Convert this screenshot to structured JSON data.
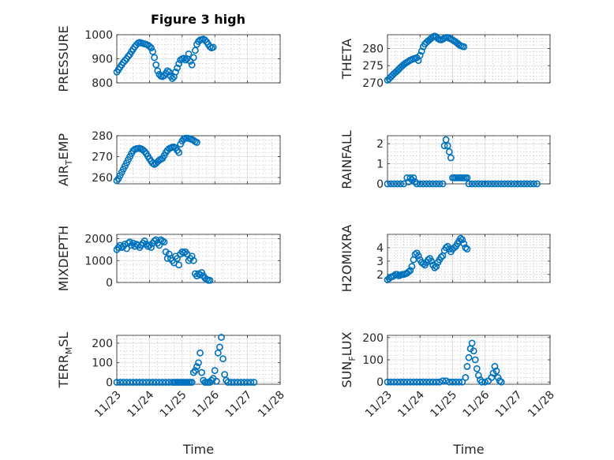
{
  "figure": {
    "title": "Figure 3 high",
    "marker_color": "#0072BD",
    "grid": "major+minor"
  },
  "chart_data": [
    {
      "type": "scatter",
      "title": "Figure 3 high",
      "ylabel": "PRESSURE",
      "ylim": [
        800,
        1000
      ],
      "yticks": [
        800,
        900,
        1000
      ],
      "xlim": [
        0,
        5
      ],
      "xticks": [
        0,
        1,
        2,
        3,
        4,
        5
      ],
      "x": [
        0.0,
        0.05,
        0.1,
        0.15,
        0.2,
        0.25,
        0.3,
        0.35,
        0.4,
        0.45,
        0.5,
        0.55,
        0.6,
        0.65,
        0.7,
        0.75,
        0.8,
        0.85,
        0.9,
        0.95,
        1.0,
        1.05,
        1.1,
        1.15,
        1.2,
        1.25,
        1.3,
        1.35,
        1.4,
        1.45,
        1.5,
        1.55,
        1.6,
        1.65,
        1.7,
        1.75,
        1.8,
        1.85,
        1.9,
        1.95,
        2.0,
        2.05,
        2.1,
        2.15,
        2.2,
        2.25,
        2.3,
        2.35,
        2.4,
        2.45,
        2.5,
        2.55,
        2.6,
        2.65,
        2.7,
        2.75,
        2.8,
        2.85,
        2.9,
        2.95,
        3.0,
        3.05,
        3.1,
        3.15,
        3.2,
        3.25,
        3.3,
        3.35,
        3.4,
        3.45,
        3.5,
        3.55,
        3.6,
        3.65,
        3.7,
        3.75,
        3.8,
        3.85,
        3.9,
        3.95
      ],
      "values": [
        845,
        855,
        865,
        875,
        885,
        893,
        900,
        910,
        918,
        930,
        940,
        950,
        958,
        965,
        968,
        966,
        964,
        962,
        960,
        957,
        952,
        945,
        930,
        905,
        875,
        850,
        835,
        828,
        826,
        830,
        840,
        850,
        845,
        828,
        818,
        825,
        845,
        862,
        880,
        895,
        900,
        902,
        895,
        900,
        920,
        890,
        875,
        905,
        935,
        960,
        972,
        978,
        980,
        982,
        978,
        970,
        960,
        950,
        945,
        948,
        950,
        952,
        954,
        955,
        956,
        957,
        958,
        959,
        960,
        961,
        962,
        963,
        964,
        965,
        966,
        967,
        968,
        969,
        970,
        971
      ],
      "n_valid": 60
    },
    {
      "type": "scatter",
      "ylabel": "THETA",
      "ylim": [
        270,
        284
      ],
      "yticks": [
        270,
        275,
        280
      ],
      "xlim": [
        0,
        5
      ],
      "xticks": [
        0,
        1,
        2,
        3,
        4,
        5
      ],
      "x": [
        0.0,
        0.05,
        0.1,
        0.15,
        0.2,
        0.25,
        0.3,
        0.35,
        0.4,
        0.45,
        0.5,
        0.55,
        0.6,
        0.65,
        0.7,
        0.75,
        0.8,
        0.85,
        0.9,
        0.95,
        1.0,
        1.05,
        1.1,
        1.15,
        1.2,
        1.25,
        1.3,
        1.35,
        1.4,
        1.45,
        1.5,
        1.55,
        1.6,
        1.65,
        1.7,
        1.75,
        1.8,
        1.85,
        1.9,
        1.95,
        2.0,
        2.05,
        2.1,
        2.15,
        2.2,
        2.25,
        2.3,
        2.35,
        2.4,
        2.45,
        2.5,
        2.55,
        2.6,
        2.65,
        2.7,
        2.75,
        2.8,
        2.85,
        2.9,
        2.95
      ],
      "values": [
        270.8,
        271.2,
        271.7,
        272.2,
        272.7,
        273.1,
        273.5,
        274.0,
        274.5,
        274.9,
        275.3,
        275.7,
        276.0,
        276.3,
        276.6,
        276.8,
        277.0,
        277.1,
        277.3,
        276.5,
        278.0,
        279.2,
        280.5,
        281.3,
        281.8,
        282.2,
        282.6,
        283.0,
        283.4,
        283.6,
        283.4,
        282.9,
        282.6,
        282.5,
        282.7,
        283.0,
        283.2,
        283.2,
        283.0,
        282.8,
        282.5,
        282.2,
        281.9,
        281.5,
        281.1,
        280.8,
        280.6,
        280.5,
        280.7,
        281.0,
        281.1,
        281.2,
        281.3,
        281.3,
        281.3,
        281.3,
        281.3,
        281.3,
        281.3,
        281.3
      ],
      "n_valid": 48
    },
    {
      "type": "scatter",
      "ylabel": "AIR_TEMP",
      "ylabel_parts": [
        "AIR",
        "T",
        "EMP"
      ],
      "ylim": [
        257,
        280
      ],
      "yticks": [
        260,
        270,
        280
      ],
      "xlim": [
        0,
        5
      ],
      "xticks": [
        0,
        1,
        2,
        3,
        4,
        5
      ],
      "x": [
        0.0,
        0.05,
        0.1,
        0.15,
        0.2,
        0.25,
        0.3,
        0.35,
        0.4,
        0.45,
        0.5,
        0.55,
        0.6,
        0.65,
        0.7,
        0.75,
        0.8,
        0.85,
        0.9,
        0.95,
        1.0,
        1.05,
        1.1,
        1.15,
        1.2,
        1.25,
        1.3,
        1.35,
        1.4,
        1.45,
        1.5,
        1.55,
        1.6,
        1.65,
        1.7,
        1.75,
        1.8,
        1.85,
        1.9,
        1.95,
        2.0,
        2.05,
        2.1,
        2.15,
        2.2,
        2.25,
        2.3,
        2.35,
        2.4,
        2.45,
        2.5,
        2.55,
        2.6,
        2.65,
        2.7,
        2.75,
        2.8,
        2.85,
        2.9,
        2.95
      ],
      "values": [
        258.5,
        259.5,
        261.0,
        262.5,
        264.0,
        265.5,
        267.0,
        268.5,
        270.0,
        271.5,
        272.8,
        273.5,
        273.8,
        273.9,
        274.0,
        273.7,
        273.2,
        272.5,
        271.5,
        270.2,
        269.0,
        267.8,
        266.8,
        266.3,
        266.8,
        267.6,
        268.3,
        268.8,
        269.2,
        270.5,
        272.0,
        273.0,
        273.8,
        274.2,
        274.5,
        274.6,
        274.2,
        273.0,
        272.0,
        276.0,
        277.5,
        278.5,
        278.8,
        278.8,
        278.7,
        278.5,
        278.2,
        277.8,
        277.2,
        276.8,
        276.8,
        276.8,
        276.8,
        276.8,
        276.8,
        276.8,
        276.8,
        276.8,
        276.8,
        276.8
      ],
      "n_valid": 50
    },
    {
      "type": "scatter",
      "ylabel": "RAINFALL",
      "ylim": [
        0,
        2.4
      ],
      "yticks": [
        0,
        1,
        2
      ],
      "xlim": [
        0,
        5
      ],
      "xticks": [
        0,
        1,
        2,
        3,
        4,
        5
      ],
      "x": [
        0.0,
        0.1,
        0.2,
        0.3,
        0.4,
        0.5,
        0.6,
        0.65,
        0.7,
        0.75,
        0.8,
        0.85,
        0.9,
        1.0,
        1.1,
        1.2,
        1.3,
        1.4,
        1.5,
        1.6,
        1.7,
        1.75,
        1.8,
        1.85,
        1.9,
        1.95,
        2.0,
        2.05,
        2.1,
        2.15,
        2.2,
        2.25,
        2.3,
        2.35,
        2.4,
        2.45,
        2.5,
        2.6,
        2.7,
        2.8,
        2.9,
        3.0,
        3.1,
        3.2,
        3.3,
        3.4,
        3.5,
        3.6,
        3.7,
        3.8,
        3.9,
        4.0,
        4.1,
        4.2,
        4.3,
        4.4,
        4.5,
        4.6
      ],
      "values": [
        0,
        0,
        0,
        0,
        0,
        0,
        0.3,
        0.1,
        0.3,
        0.2,
        0.3,
        0.1,
        0,
        0,
        0,
        0,
        0,
        0,
        0,
        0,
        0,
        1.9,
        2.2,
        1.9,
        1.6,
        1.3,
        0.3,
        0.3,
        0.3,
        0.3,
        0.3,
        0.3,
        0.3,
        0.3,
        0.3,
        0.3,
        0,
        0,
        0,
        0,
        0,
        0,
        0,
        0,
        0,
        0,
        0,
        0,
        0,
        0,
        0,
        0,
        0,
        0,
        0,
        0,
        0,
        0
      ],
      "n_valid": 58
    },
    {
      "type": "scatter",
      "ylabel": "MIXDEPTH",
      "ylim": [
        0,
        2200
      ],
      "yticks": [
        0,
        1000,
        2000
      ],
      "xlim": [
        0,
        5
      ],
      "xticks": [
        0,
        1,
        2,
        3,
        4,
        5
      ],
      "x": [
        0.0,
        0.05,
        0.1,
        0.15,
        0.2,
        0.25,
        0.3,
        0.35,
        0.4,
        0.45,
        0.5,
        0.55,
        0.6,
        0.65,
        0.7,
        0.75,
        0.8,
        0.85,
        0.9,
        0.95,
        1.0,
        1.05,
        1.1,
        1.15,
        1.2,
        1.25,
        1.3,
        1.35,
        1.4,
        1.45,
        1.5,
        1.55,
        1.6,
        1.65,
        1.7,
        1.75,
        1.8,
        1.85,
        1.9,
        1.95,
        2.0,
        2.05,
        2.1,
        2.15,
        2.2,
        2.25,
        2.3,
        2.35,
        2.4,
        2.45,
        2.5,
        2.55,
        2.6,
        2.65,
        2.7,
        2.75,
        2.8,
        2.85,
        2.9,
        2.95
      ],
      "values": [
        1500,
        1600,
        1700,
        1600,
        1650,
        1750,
        1550,
        1800,
        1850,
        1700,
        1800,
        1650,
        1750,
        1700,
        1600,
        1700,
        1800,
        1900,
        1750,
        1650,
        1700,
        1600,
        1800,
        1900,
        1950,
        1800,
        1700,
        1950,
        1900,
        1850,
        1400,
        1100,
        1300,
        1100,
        1000,
        900,
        1200,
        1100,
        800,
        1300,
        1400,
        1350,
        1400,
        1300,
        1000,
        1100,
        1200,
        1000,
        400,
        300,
        400,
        350,
        450,
        300,
        200,
        150,
        100,
        100,
        100,
        100
      ],
      "n_valid": 58
    },
    {
      "type": "scatter",
      "ylabel": "H2OMIXRA",
      "ylim": [
        1.4,
        5
      ],
      "yticks": [
        2,
        3,
        4
      ],
      "xlim": [
        0,
        5
      ],
      "xticks": [
        0,
        1,
        2,
        3,
        4,
        5
      ],
      "x": [
        0.0,
        0.05,
        0.1,
        0.15,
        0.2,
        0.25,
        0.3,
        0.35,
        0.4,
        0.45,
        0.5,
        0.55,
        0.6,
        0.65,
        0.7,
        0.75,
        0.8,
        0.85,
        0.9,
        0.95,
        1.0,
        1.05,
        1.1,
        1.15,
        1.2,
        1.25,
        1.3,
        1.35,
        1.4,
        1.45,
        1.5,
        1.55,
        1.6,
        1.65,
        1.7,
        1.75,
        1.8,
        1.85,
        1.9,
        1.95,
        2.0,
        2.05,
        2.1,
        2.15,
        2.2,
        2.25,
        2.3,
        2.35,
        2.4,
        2.45,
        2.5,
        2.55,
        2.6,
        2.65,
        2.7,
        2.75,
        2.8,
        2.85,
        2.9,
        2.95
      ],
      "values": [
        1.6,
        1.7,
        1.8,
        1.85,
        1.9,
        2.0,
        2.0,
        1.9,
        1.95,
        2.0,
        2.0,
        2.05,
        2.1,
        2.2,
        2.3,
        2.6,
        3.1,
        3.5,
        3.6,
        3.4,
        3.1,
        2.9,
        2.8,
        2.7,
        2.9,
        3.1,
        3.2,
        3.0,
        2.7,
        2.5,
        2.6,
        2.9,
        3.1,
        3.3,
        3.4,
        3.8,
        4.0,
        4.1,
        3.9,
        3.7,
        3.9,
        4.0,
        4.1,
        4.3,
        4.5,
        4.7,
        4.6,
        4.3,
        4.0,
        3.9,
        3.9,
        3.9,
        3.9,
        3.9,
        3.9,
        3.9,
        3.9,
        3.9,
        3.9,
        3.9
      ],
      "n_valid": 50
    },
    {
      "type": "scatter",
      "ylabel": "TERR_MSL",
      "ylabel_parts": [
        "TERR",
        "M",
        "SL"
      ],
      "ylim": [
        -10,
        240
      ],
      "yticks": [
        0,
        100,
        200
      ],
      "xlim": [
        0,
        5
      ],
      "xticks": [
        0,
        1,
        2,
        3,
        4,
        5
      ],
      "x": [
        0.0,
        0.1,
        0.2,
        0.3,
        0.4,
        0.5,
        0.6,
        0.7,
        0.8,
        0.9,
        1.0,
        1.1,
        1.2,
        1.3,
        1.4,
        1.5,
        1.6,
        1.7,
        1.75,
        1.8,
        1.85,
        1.9,
        1.95,
        2.0,
        2.05,
        2.1,
        2.15,
        2.2,
        2.25,
        2.3,
        2.35,
        2.4,
        2.45,
        2.5,
        2.55,
        2.6,
        2.65,
        2.7,
        2.75,
        2.8,
        2.85,
        2.9,
        2.95,
        3.0,
        3.05,
        3.1,
        3.15,
        3.2,
        3.25,
        3.3,
        3.35,
        3.4,
        3.5,
        3.6,
        3.7,
        3.8,
        3.9,
        4.0,
        4.1,
        4.2
      ],
      "values": [
        0,
        0,
        0,
        0,
        0,
        0,
        0,
        0,
        0,
        0,
        0,
        0,
        0,
        0,
        0,
        0,
        0,
        0,
        0,
        0,
        0,
        0,
        0,
        0,
        0,
        0,
        0,
        0,
        0,
        0,
        50,
        60,
        80,
        100,
        150,
        50,
        10,
        0,
        0,
        0,
        0,
        10,
        20,
        60,
        5,
        150,
        180,
        230,
        120,
        40,
        10,
        0,
        0,
        0,
        0,
        0,
        0,
        0,
        0,
        0
      ],
      "n_valid": 60
    },
    {
      "type": "scatter",
      "ylabel": "SUN_FLUX",
      "ylabel_parts": [
        "SUN",
        "F",
        "LUX"
      ],
      "ylim": [
        -10,
        210
      ],
      "yticks": [
        0,
        100,
        200
      ],
      "xlim": [
        0,
        5
      ],
      "xticks": [
        0,
        1,
        2,
        3,
        4,
        5
      ],
      "x": [
        0.0,
        0.1,
        0.2,
        0.3,
        0.4,
        0.5,
        0.6,
        0.7,
        0.8,
        0.9,
        1.0,
        1.1,
        1.2,
        1.3,
        1.4,
        1.5,
        1.6,
        1.7,
        1.8,
        1.9,
        2.0,
        2.1,
        2.2,
        2.3,
        2.4,
        2.45,
        2.5,
        2.55,
        2.6,
        2.65,
        2.7,
        2.75,
        2.8,
        2.85,
        2.9,
        3.0,
        3.1,
        3.2,
        3.25,
        3.3,
        3.35,
        3.4,
        3.45,
        3.5,
        3.6,
        3.7,
        3.8,
        3.9,
        4.0,
        4.1,
        4.2,
        4.3,
        4.4,
        4.5,
        4.6,
        4.7,
        4.8,
        4.9,
        5.0,
        5.0
      ],
      "values": [
        0,
        0,
        0,
        0,
        0,
        0,
        0,
        0,
        0,
        0,
        0,
        0,
        0,
        0,
        0,
        0,
        0,
        5,
        5,
        0,
        0,
        0,
        0,
        0,
        20,
        70,
        110,
        150,
        175,
        140,
        100,
        60,
        30,
        10,
        0,
        0,
        5,
        20,
        40,
        70,
        50,
        20,
        5,
        0,
        0,
        0,
        0,
        0,
        0,
        0,
        0,
        0,
        0,
        0,
        0,
        0,
        0,
        0,
        0,
        0
      ],
      "n_valid": 44
    }
  ],
  "x_axis": {
    "tick_labels": [
      "11/23",
      "11/24",
      "11/25",
      "11/26",
      "11/27",
      "11/28"
    ],
    "label": "Time"
  }
}
